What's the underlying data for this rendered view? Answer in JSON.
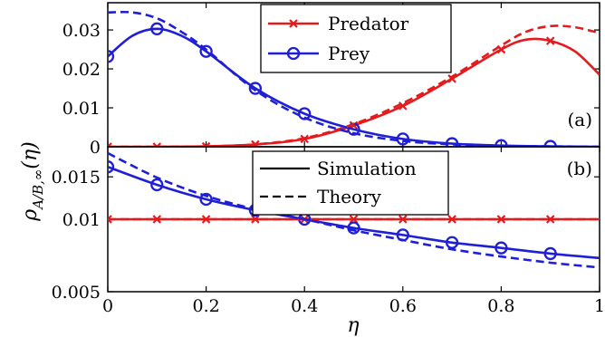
{
  "colors": {
    "predator": "#e41a1c",
    "prey": "#1f1fd6"
  },
  "axes": {
    "xlabel": "η",
    "ylabel_main": "ρ",
    "ylabel_sub": "A/B,∞",
    "ylabel_arg": "(η)"
  },
  "chart_data": [
    {
      "type": "line",
      "panel_label": "(a)",
      "xlim": [
        0,
        1
      ],
      "ylim": [
        0,
        0.037
      ],
      "grid": false,
      "legend": {
        "placement": "top-center",
        "entries": [
          "Predator",
          "Prey"
        ]
      },
      "x_ticks": [
        0,
        0.2,
        0.4,
        0.6,
        0.8,
        1
      ],
      "y_ticks": [
        "0",
        "0.01",
        "0.02",
        "0.03"
      ],
      "y_tick_values": [
        0,
        0.01,
        0.02,
        0.03
      ],
      "series": [
        {
          "name": "Predator",
          "style": "solid",
          "marker": "x",
          "x": [
            0,
            0.1,
            0.2,
            0.3,
            0.4,
            0.5,
            0.6,
            0.7,
            0.8,
            0.85,
            0.9,
            0.95,
            1.0
          ],
          "y": [
            0,
            0,
            0.0001,
            0.0006,
            0.002,
            0.0055,
            0.0105,
            0.0175,
            0.025,
            0.0275,
            0.0272,
            0.0245,
            0.0185
          ],
          "markers_x": [
            0,
            0.1,
            0.2,
            0.3,
            0.4,
            0.5,
            0.6,
            0.7,
            0.8,
            0.9
          ]
        },
        {
          "name": "Prey",
          "style": "solid",
          "marker": "o",
          "x": [
            0,
            0.05,
            0.1,
            0.15,
            0.2,
            0.3,
            0.4,
            0.5,
            0.6,
            0.7,
            0.8,
            0.9,
            1.0
          ],
          "y": [
            0.0232,
            0.0285,
            0.0303,
            0.0285,
            0.0245,
            0.015,
            0.0085,
            0.0045,
            0.002,
            0.0008,
            0.0003,
            0.0001,
            0
          ],
          "markers_x": [
            0,
            0.1,
            0.2,
            0.3,
            0.4,
            0.5,
            0.6,
            0.7,
            0.8,
            0.9
          ]
        },
        {
          "style": "dashed",
          "color_key": "predator",
          "x": [
            0,
            0.1,
            0.2,
            0.3,
            0.4,
            0.5,
            0.6,
            0.7,
            0.8,
            0.85,
            0.9,
            0.95,
            1.0
          ],
          "y": [
            0,
            0,
            0.0001,
            0.0006,
            0.0022,
            0.0058,
            0.0112,
            0.018,
            0.026,
            0.0295,
            0.031,
            0.0307,
            0.0292
          ]
        },
        {
          "style": "dashed",
          "color_key": "prey",
          "x": [
            0,
            0.05,
            0.1,
            0.15,
            0.2,
            0.3,
            0.4,
            0.5,
            0.6,
            0.7,
            0.8,
            0.9,
            1.0
          ],
          "y": [
            0.0345,
            0.0345,
            0.033,
            0.0295,
            0.025,
            0.0145,
            0.0075,
            0.0035,
            0.0015,
            0.0006,
            0.0002,
            0.0001,
            0
          ]
        }
      ]
    },
    {
      "type": "line",
      "panel_label": "(b)",
      "xlim": [
        0,
        1
      ],
      "ylim": [
        0.005,
        0.02
      ],
      "y_scale": "log",
      "grid": false,
      "legend": {
        "placement": "top-center",
        "entries": [
          "Simulation",
          "Theory"
        ]
      },
      "x_ticks": [
        "0",
        "0.2",
        "0.4",
        "0.6",
        "0.8",
        "1"
      ],
      "x_tick_values": [
        0,
        0.2,
        0.4,
        0.6,
        0.8,
        1
      ],
      "y_ticks": [
        "0.005",
        "0.01",
        "0.015"
      ],
      "y_tick_values": [
        0.005,
        0.01,
        0.015
      ],
      "series": [
        {
          "style": "solid",
          "marker": "x",
          "color_key": "predator",
          "x": [
            0,
            1
          ],
          "y": [
            0.01,
            0.01
          ],
          "markers_x": [
            0,
            0.1,
            0.2,
            0.3,
            0.4,
            0.5,
            0.6,
            0.7,
            0.8,
            0.9
          ]
        },
        {
          "style": "solid",
          "marker": "o",
          "color_key": "prey",
          "x": [
            0,
            0.1,
            0.2,
            0.3,
            0.4,
            0.5,
            0.6,
            0.7,
            0.8,
            0.9,
            1.0
          ],
          "y": [
            0.0165,
            0.0139,
            0.0121,
            0.0109,
            0.01,
            0.0092,
            0.0086,
            0.008,
            0.0076,
            0.0072,
            0.0069
          ],
          "markers_x": [
            0,
            0.1,
            0.2,
            0.3,
            0.4,
            0.5,
            0.6,
            0.7,
            0.8,
            0.9
          ]
        },
        {
          "style": "dashed",
          "color_key": "predator",
          "x": [
            0,
            1
          ],
          "y": [
            0.01,
            0.01
          ]
        },
        {
          "style": "dashed",
          "color_key": "prey",
          "x": [
            0,
            0.1,
            0.2,
            0.3,
            0.4,
            0.5,
            0.6,
            0.7,
            0.8,
            0.9,
            1.0
          ],
          "y": [
            0.0188,
            0.0149,
            0.0125,
            0.011,
            0.01,
            0.009,
            0.0082,
            0.0075,
            0.007,
            0.0066,
            0.0063
          ]
        }
      ]
    }
  ]
}
